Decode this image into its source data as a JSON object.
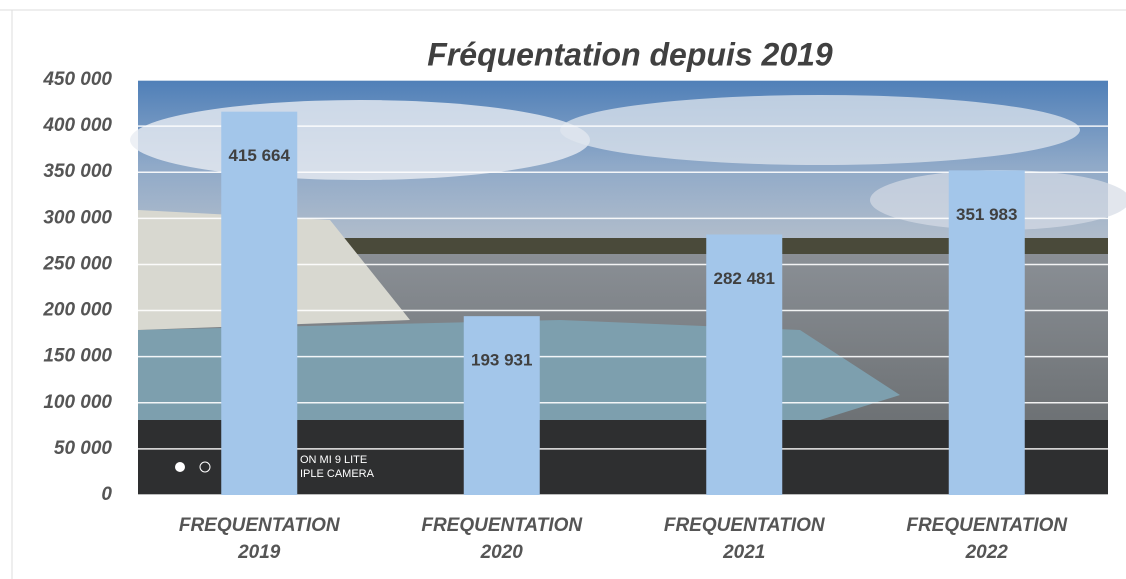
{
  "chart_data": {
    "type": "bar",
    "title": "Fréquentation depuis 2019",
    "categories": [
      "FREQUENTATION 2019",
      "FREQUENTATION 2020",
      "FREQUENTATION 2021",
      "FREQUENTATION 2022"
    ],
    "values": [
      415664,
      193931,
      282481,
      351983
    ],
    "value_labels": [
      "415 664",
      "193 931",
      "282 481",
      "351 983"
    ],
    "color": "#a3c6ea",
    "ylim": [
      0,
      450000
    ],
    "yticks": [
      0,
      {
        "value": 50000,
        "label": "50 000"
      },
      {
        "value": 100000,
        "label": "100 000"
      },
      {
        "value": 150000,
        "label": "150 000"
      },
      {
        "value": 200000,
        "label": "200 000"
      },
      {
        "value": 250000,
        "label": "250 000"
      },
      {
        "value": 300000,
        "label": "300 000"
      },
      {
        "value": 350000,
        "label": "350 000"
      },
      {
        "value": 400000,
        "label": "400 000"
      },
      {
        "value": 450000,
        "label": "450 000"
      }
    ],
    "grid": true,
    "photo_text": [
      "ON MI 9 LITE",
      "IPLE CAMERA"
    ]
  }
}
